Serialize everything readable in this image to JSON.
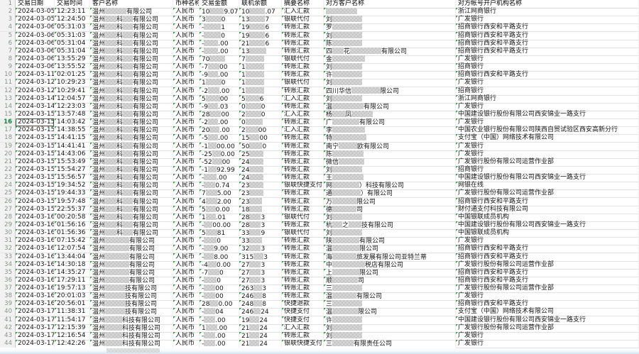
{
  "sheet": {
    "columns": [
      "交易日期",
      "交易时间",
      "客户名称",
      "币种名称",
      "交易金额",
      "联机余额",
      "摘要名称",
      "对方客户名称",
      "对方帐号开户机构名称"
    ],
    "corner_row_label": "1",
    "row_header_start": 1,
    "selection": {
      "active_row_number": 16
    },
    "colors": {
      "grid": "#e2e2e2",
      "row_header_bg": "#f2f2f2",
      "row_header_text": "#8a938a",
      "selected_green": "#1e7a46",
      "text_marker_triangle": "#2f9e44",
      "mosaic_light": "#d7d7d7",
      "mosaic_dark": "#c6c6c6"
    },
    "legend": "cells: plain strings are fully visible text; arrays are segments where strings are visible text and numbers are widths(px) of pixelated redaction blocks",
    "rows": [
      [
        "2024-03-05",
        "12:23:11",
        [
          "温州",
          30,
          "有限公司"
        ],
        "人民币",
        [
          "10",
          20,
          "9.07"
        ],
        [
          "10",
          22,
          ".07"
        ],
        "汇入汇款",
        [
          44
        ],
        "浙江网商银行"
      ],
      [
        "2024-03-05",
        "12:24:50",
        [
          "温州",
          16,
          "科",
          14,
          "有限公司"
        ],
        "人民币",
        [
          "3",
          22,
          "0"
        ],
        [
          "13",
          22,
          "7"
        ],
        "银联代付",
        [
          "刘",
          42
        ],
        "广发银行"
      ],
      [
        "2024-03-06",
        "05:31:03",
        [
          "温州",
          16,
          "科",
          14,
          "有限公司"
        ],
        "人民币",
        [
          "-",
          24,
          "1"
        ],
        [
          "19",
          22,
          "6"
        ],
        "转账汇款",
        [
          "罗",
          42
        ],
        "招商银行西安和平路支行"
      ],
      [
        "2024-03-06",
        "05:31:03",
        [
          "温州",
          16,
          "科",
          14,
          "有限公司"
        ],
        "人民币",
        [
          "-",
          24,
          "0"
        ],
        [
          "19",
          22,
          "6"
        ],
        "转账汇款",
        [
          "刘",
          42
        ],
        "招商银行西安和平路支行"
      ],
      [
        "2024-03-06",
        "05:31:04",
        [
          "温州",
          16,
          "科",
          14,
          "有限公司"
        ],
        "人民币",
        [
          "-",
          20,
          ".00"
        ],
        [
          "21",
          22,
          "6"
        ],
        "转账汇款",
        [
          "陈",
          42
        ],
        "招商银行西安和平路支行"
      ],
      [
        "2024-03-06",
        "05:31:04",
        [
          "温州",
          16,
          "科",
          14,
          "有限公司"
        ],
        "人民币",
        [
          "-",
          20,
          ".00"
        ],
        [
          "13",
          24
        ],
        "转账汇款",
        [
          "四",
          16,
          "花",
          44,
          "有限公司"
        ],
        "招商银行西安和平路支行"
      ],
      [
        "2024-03-06",
        "13:55:29",
        [
          "温州",
          16,
          "科",
          14,
          "有限公司"
        ],
        "人民币",
        [
          "70",
          22
        ],
        [
          "7",
          26
        ],
        "银联代付",
        [
          "金",
          46
        ],
        "广发银行"
      ],
      [
        "2024-03-06",
        "13:55:52",
        [
          "温州",
          16,
          "科",
          14,
          "有限公司"
        ],
        "人民币",
        [
          "-7",
          16,
          "00"
        ],
        [
          "1",
          26
        ],
        "转账汇款",
        [
          "刘",
          42
        ],
        "招商银行"
      ],
      [
        "2024-03-11",
        "02:01:25",
        [
          "温州",
          16,
          "科",
          14,
          "有限公司"
        ],
        "人民币",
        [
          "-9",
          14,
          ".00"
        ],
        [
          "1",
          26
        ],
        "转账汇款",
        [
          "许",
          42
        ],
        "招商银行西安和平路支行"
      ],
      [
        "2024-03-12",
        "10:29:23",
        [
          "温州",
          16,
          "科",
          14,
          "有限公司"
        ],
        "人民币",
        [
          "1",
          22,
          "0"
        ],
        [
          "1",
          26
        ],
        "银联代付",
        [
          "刘",
          42
        ],
        "广发银行"
      ],
      [
        "2024-03-12",
        "10:29:41",
        [
          "温州",
          16,
          "科",
          14,
          "有限公司"
        ],
        "人民币",
        [
          "-2",
          16,
          ".00"
        ],
        [
          "1",
          26
        ],
        "转账汇款",
        [
          "四川华信",
          40,
          "限公司"
        ],
        "招商银行"
      ],
      [
        "2024-03-14",
        "12:04:57",
        [
          "温州",
          16,
          "科",
          14,
          "有限公司"
        ],
        "人民币",
        [
          "5",
          20,
          "00"
        ],
        [
          "5",
          20,
          "6"
        ],
        "汇入汇款",
        [
          "刘",
          42
        ],
        "浙江网商银行"
      ],
      [
        "2024-03-14",
        "12:23:03",
        [
          "温州",
          16,
          "科",
          14,
          "有限公司"
        ],
        "人民币",
        [
          "-9",
          14,
          ".03"
        ],
        [
          "0",
          22,
          "0"
        ],
        "转账汇款",
        [
          "温",
          44,
          "有限公司"
        ],
        "广发银行"
      ],
      [
        "2024-03-15",
        "13:57:48",
        [
          "温州",
          16,
          "科",
          14,
          "有限公司"
        ],
        "人民币",
        [
          "28",
          16,
          "00"
        ],
        [
          "2",
          22,
          "0"
        ],
        "汇入汇款",
        [
          "杨",
          18,
          "凤",
          30
        ],
        "中国建设银行股份有限公司西安锦业一路支行"
      ],
      [
        "2024-03-15",
        "14:03:42",
        [
          "温州",
          16,
          "科",
          14,
          "有限公司"
        ],
        "人民币",
        [
          "-2",
          14,
          ".00"
        ],
        [
          "0",
          24
        ],
        "转账汇款",
        [
          "广",
          38,
          "有限公司"
        ],
        "广发银行"
      ],
      [
        "2024-03-15",
        "14:38:55",
        [
          "温州",
          16,
          "科",
          14,
          "有限公司"
        ],
        "人民币",
        [
          "20",
          14,
          ".00"
        ],
        [
          "2",
          18,
          "00"
        ],
        "汇入汇款",
        [
          "李",
          46
        ],
        "中国农业银行股份有限公司陕西自贸试验区西安高新分行"
      ],
      [
        "2024-03-15",
        "14:41:15",
        [
          "温州",
          16,
          "科",
          14,
          "有限公司"
        ],
        "人民币",
        [
          "-5",
          14,
          ".00"
        ],
        [
          "15",
          14,
          "00"
        ],
        "转账汇款",
        [
          "特",
          48
        ],
        "支付宝（中国）网络技术有限公司"
      ],
      [
        "2024-03-15",
        "14:41:41",
        [
          "温州",
          16,
          "科",
          14,
          "有限公司"
        ],
        "人民币",
        [
          "-1",
          12,
          "00.00"
        ],
        [
          "50",
          18,
          "0"
        ],
        "转账汇款",
        [
          "南宁",
          26,
          "欧有限公司"
        ],
        "广发银行"
      ],
      [
        "2024-03-15",
        "14:43:06",
        [
          "温州",
          16,
          "科",
          14,
          "有限公司"
        ],
        "人民币",
        [
          "-25",
          12,
          "0.00"
        ],
        [
          "25",
          20
        ],
        "转账汇款",
        [
          "陈",
          44
        ],
        "广发银行"
      ],
      [
        "2024-03-15",
        "15:53:49",
        [
          "温州",
          16,
          "科",
          14,
          "有限公司"
        ],
        "人民币",
        [
          "-52",
          14,
          "00"
        ],
        [
          "24",
          20
        ],
        "转账汇款",
        [
          "微信",
          36
        ],
        "广发银行股份有限公司运营作业部"
      ],
      [
        "2024-03-15",
        "15:54:27",
        [
          "温州",
          16,
          "科",
          14,
          "有限公司"
        ],
        "人民币",
        [
          "-1",
          12,
          "92.99"
        ],
        [
          "24",
          20
        ],
        "转账汇款",
        [
          "刘",
          42
        ],
        "招商银行"
      ],
      [
        "2024-03-15",
        "15:56:57",
        [
          "温州",
          16,
          "科",
          14,
          "有限公司"
        ],
        "人民币",
        [
          "-",
          18,
          ".00"
        ],
        [
          "24",
          20
        ],
        "转账汇款",
        [
          "王",
          44
        ],
        "中国建设银行股份有限公司西安锦业一路支行"
      ],
      [
        "2024-03-15",
        "19:34:52",
        [
          "温州",
          16,
          "科",
          14,
          "有限公司"
        ],
        "人民币",
        [
          "-",
          16,
          "0.74"
        ],
        [
          "23",
          20
        ],
        "银联快捷支付",
        [
          "网",
          38,
          "）科技有限公司"
        ],
        "网银在线"
      ],
      [
        "2024-03-15",
        "19:44:33",
        [
          "温州",
          16,
          "科",
          14,
          "有限公司"
        ],
        "人民币",
        [
          "7",
          16,
          "5.00"
        ],
        [
          "23",
          20
        ],
        "转账汇款",
        [
          "通",
          40,
          "）有限公司"
        ],
        "广发银行股份有限公司运营作业部"
      ],
      [
        "2024-03-15",
        "19:57:48",
        [
          "温州",
          16,
          "科",
          14,
          "有限公司"
        ],
        "人民币",
        [
          "4",
          16,
          "2.00"
        ],
        [
          "23",
          18
        ],
        "转账汇款",
        [
          "万",
          34,
          "限公司"
        ],
        "招商银行西安和平路支行"
      ],
      [
        "2024-03-15",
        "22:55:37",
        [
          "温州",
          16,
          "科",
          14,
          "有限公司"
        ],
        "人民币",
        [
          "5",
          14,
          "0.00"
        ],
        [
          "18",
          18
        ],
        "转账汇款",
        [
          "德",
          34,
          "司"
        ],
        "财付通支付科技有限公司"
      ],
      [
        "2024-03-16",
        "00:20:58",
        [
          "温州",
          16,
          "科",
          14,
          "有限公司"
        ],
        "人民币",
        [
          "1",
          14,
          ".01"
        ],
        [
          "28",
          16,
          "3"
        ],
        "银联代付",
        [
          "刘",
          42
        ],
        "中国银联成员机构"
      ],
      [
        "2024-03-16",
        "01:56:16",
        [
          "温州",
          16,
          "科",
          14,
          "有限公司"
        ],
        "人民币",
        [
          "-",
          12,
          "00.00"
        ],
        [
          "28",
          16,
          "3"
        ],
        "转账汇款",
        [
          "杭",
          14,
          "之",
          18,
          "技有限公司"
        ],
        "中国建设银行股份有限公司西安锦业一路支行"
      ],
      [
        "2024-03-16",
        "01:56:36",
        [
          "温州",
          16,
          "科",
          14,
          "有限公司"
        ],
        "人民币",
        [
          "5",
          16,
          "81"
        ],
        [
          "33",
          16,
          "9"
        ],
        "银联代付",
        [
          "刘",
          42
        ],
        "中国银联成员机构"
      ],
      [
        "2024-03-16",
        "07:15:42",
        [
          "温州",
          34,
          "有限公司"
        ],
        "人民币",
        [
          "-",
          18,
          "0"
        ],
        [
          "33",
          18
        ],
        "转账汇款",
        [
          "陕",
          38,
          "有限公司"
        ],
        "广发银行"
      ],
      [
        "2024-03-16",
        "12:07:54",
        [
          "温州",
          34,
          "有限公司"
        ],
        "人民币",
        [
          "-",
          14,
          "9.00"
        ],
        [
          "32",
          16,
          "3"
        ],
        "转账汇款",
        [
          "温",
          38,
          "限公司"
        ],
        "招商银行西安和平路支行"
      ],
      [
        "2024-03-16",
        "13:44:04",
        [
          "温州",
          34,
          "有限公司"
        ],
        "人民币",
        [
          "-",
          14,
          "8.00"
        ],
        [
          "315",
          14,
          "3"
        ],
        "转账汇款",
        [
          "海",
          34,
          "旅发展有限公司亚特兰蒂"
        ],
        "招商银行西安和平路支行"
      ],
      [
        "2024-03-16",
        "14:30:18",
        [
          "温州",
          34,
          "有限公司"
        ],
        "人民币",
        [
          "-4",
          12,
          "0.00"
        ],
        [
          "27",
          16,
          "3"
        ],
        "转账汇款",
        [
          "中",
          46,
          "税店有限公司"
        ],
        "广发银行股份有限公司运营作业部"
      ],
      [
        "2024-03-16",
        "14:35:27",
        [
          "温州",
          34,
          "有限公司"
        ],
        "人民币",
        [
          "-7",
          16,
          "0"
        ],
        [
          "27",
          16,
          "3"
        ],
        "转账汇款",
        [
          "上",
          38,
          "限公司"
        ],
        "招商银行西安和平路支行"
      ],
      [
        "2024-03-16",
        "17:29:11",
        [
          "温州",
          34,
          "有限公司"
        ],
        "人民币",
        [
          "-",
          18,
          "0"
        ],
        [
          "27",
          16,
          "3"
        ],
        "转账汇款",
        [
          "顺",
          36,
          "司"
        ],
        "招商银行西安和平路支行"
      ],
      [
        "2024-03-16",
        "19:57:13",
        [
          "温州",
          28,
          "技有限公司"
        ],
        "人民币",
        [
          "-",
          16,
          "00"
        ],
        [
          "263",
          12,
          "3"
        ],
        "转账汇款",
        [
          "三",
          42
        ],
        "广发银行股份有限公司运营作业部"
      ],
      [
        "2024-03-16",
        "20:01:03",
        [
          "温州",
          28,
          "技有限公司"
        ],
        "人民币",
        [
          "-",
          16,
          "00"
        ],
        [
          "246",
          12,
          "8"
        ],
        "转账汇款",
        [
          "温",
          34,
          "有限公司"
        ],
        "广发银行"
      ],
      [
        "2024-03-16",
        "20:56:01",
        [
          "温州",
          28,
          "技有限公司"
        ],
        "人民币",
        [
          "28",
          12,
          "0.00"
        ],
        [
          "248",
          12,
          "8"
        ],
        "快捷退款",
        [
          "三",
          42
        ],
        "招商银行西安和平路支行"
      ],
      [
        "2024-03-17",
        "11:38:31",
        [
          "温州",
          28,
          "技有限公司"
        ],
        "人民币",
        [
          "-",
          16,
          "04"
        ],
        [
          "246",
          10,
          "24"
        ],
        "快捷支付",
        [
          "温",
          36,
          "限公司"
        ],
        "支付宝（中国）网络技术有限公司"
      ],
      [
        "2024-03-17",
        "11:54:17",
        [
          "温州",
          24,
          "科技有限公司"
        ],
        "人民币",
        [
          "-",
          16,
          ".00"
        ],
        [
          "19",
          14,
          "24"
        ],
        "快捷支付",
        [
          "许",
          42
        ],
        "中国建设银行股份有限公司西安锦业一路支行"
      ],
      [
        "2024-03-17",
        "12:15:39",
        [
          "温州",
          24,
          "科技有限公司"
        ],
        "人民币",
        [
          "1",
          16,
          ".00"
        ],
        [
          "21",
          14,
          "24"
        ],
        "汇入汇款",
        [
          "刘",
          42
        ],
        "广发银行股份有限公司运营作业部"
      ],
      [
        "2024-03-17",
        "12:16:54",
        [
          "温州",
          24,
          "科技有限公司"
        ],
        "人民币",
        [
          "-",
          16,
          ".00"
        ],
        [
          "21",
          14,
          "24"
        ],
        "转账汇款",
        [
          "刘",
          42
        ],
        "广发银行"
      ],
      [
        "2024-03-17",
        "12:42:26",
        [
          "温州",
          24,
          "科技有限公司"
        ],
        "人民币",
        [
          "-",
          16,
          ".00"
        ],
        [
          "21",
          14,
          "24"
        ],
        "银联快捷支付",
        [
          "三",
          30,
          "有限责任公司"
        ],
        "广发银行"
      ]
    ]
  }
}
